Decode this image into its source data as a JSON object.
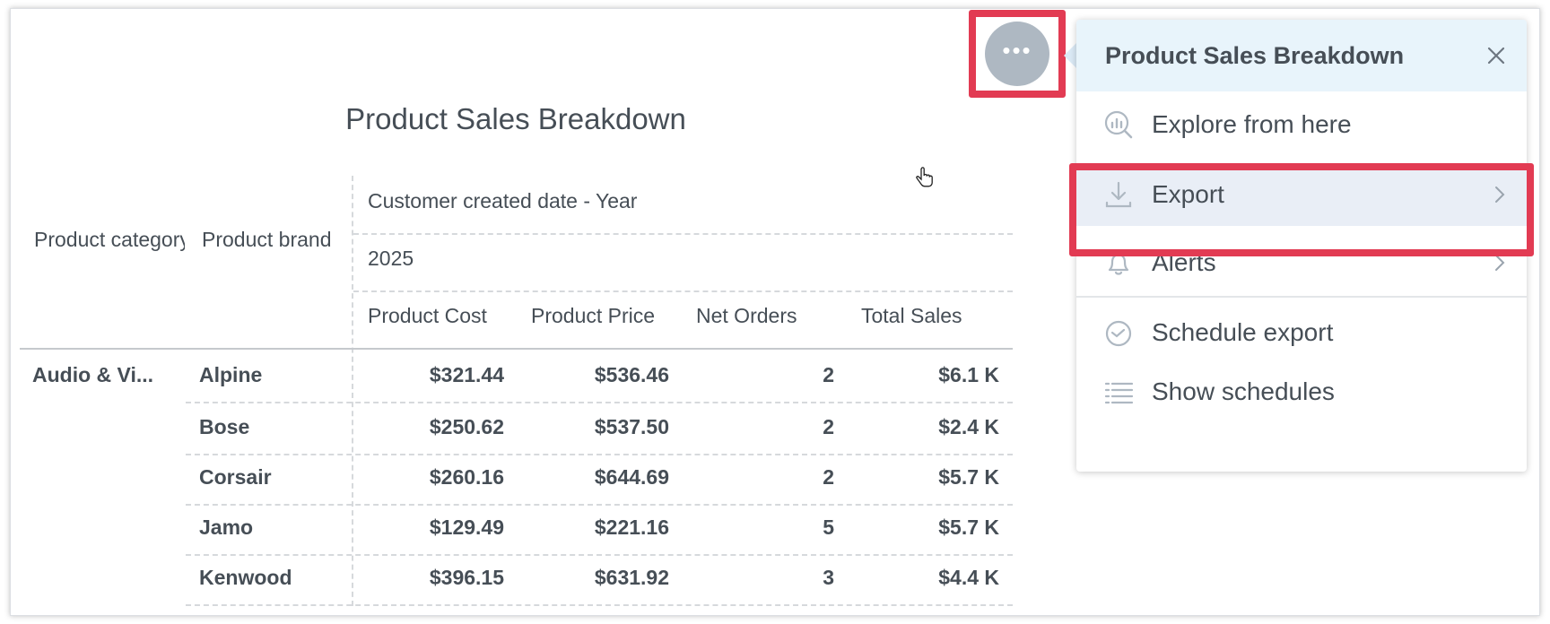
{
  "widget": {
    "title": "Product Sales Breakdown",
    "headers": {
      "row_attr_1": "Product category",
      "row_attr_2": "Product brand",
      "col_attr": "Customer created date - Year",
      "col_value": "2025",
      "measures": [
        "Product Cost",
        "Product Price",
        "Net Orders",
        "Total Sales"
      ]
    },
    "rows": [
      {
        "category": "Audio & Vi...",
        "brand": "Alpine",
        "cost": "$321.44",
        "price": "$536.46",
        "orders": "2",
        "sales": "$6.1 K"
      },
      {
        "category": "",
        "brand": "Bose",
        "cost": "$250.62",
        "price": "$537.50",
        "orders": "2",
        "sales": "$2.4 K"
      },
      {
        "category": "",
        "brand": "Corsair",
        "cost": "$260.16",
        "price": "$644.69",
        "orders": "2",
        "sales": "$5.7 K"
      },
      {
        "category": "",
        "brand": "Jamo",
        "cost": "$129.49",
        "price": "$221.16",
        "orders": "5",
        "sales": "$5.7 K"
      },
      {
        "category": "",
        "brand": "Kenwood",
        "cost": "$396.15",
        "price": "$631.92",
        "orders": "3",
        "sales": "$4.4 K"
      }
    ]
  },
  "menu": {
    "title": "Product Sales Breakdown",
    "items": [
      {
        "label": "Explore from here",
        "icon": "explore-icon"
      },
      {
        "label": "Export",
        "icon": "download-icon",
        "submenu": true
      },
      {
        "label": "Alerts",
        "icon": "bell-icon",
        "submenu": true
      },
      {
        "label": "Schedule export",
        "icon": "clock-icon"
      },
      {
        "label": "Show schedules",
        "icon": "list-icon"
      }
    ]
  },
  "colors": {
    "highlight": "#e23b53",
    "trigger": "#aeb8c2",
    "popup_header": "#e8f4fb"
  }
}
